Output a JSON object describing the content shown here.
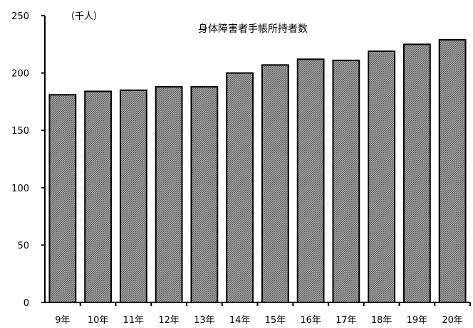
{
  "chart_data": {
    "type": "bar",
    "title": "身体障害者手帳所持者数",
    "ylabel": "（千人）",
    "xlabel": "",
    "categories": [
      "9年",
      "10年",
      "11年",
      "12年",
      "13年",
      "14年",
      "15年",
      "16年",
      "17年",
      "18年",
      "19年",
      "20年"
    ],
    "values": [
      181,
      184,
      185,
      188,
      188,
      200,
      207,
      212,
      211,
      219,
      225,
      229
    ],
    "ylim": [
      0,
      250
    ],
    "yticks": [
      "0",
      "50",
      "100",
      "150",
      "200",
      "250"
    ],
    "grid": false,
    "legend": "none",
    "colors": {
      "bar_fill": "#a6a6a6",
      "bar_pattern": "#555555",
      "bar_stroke": "#000000",
      "axis": "#000000"
    }
  }
}
